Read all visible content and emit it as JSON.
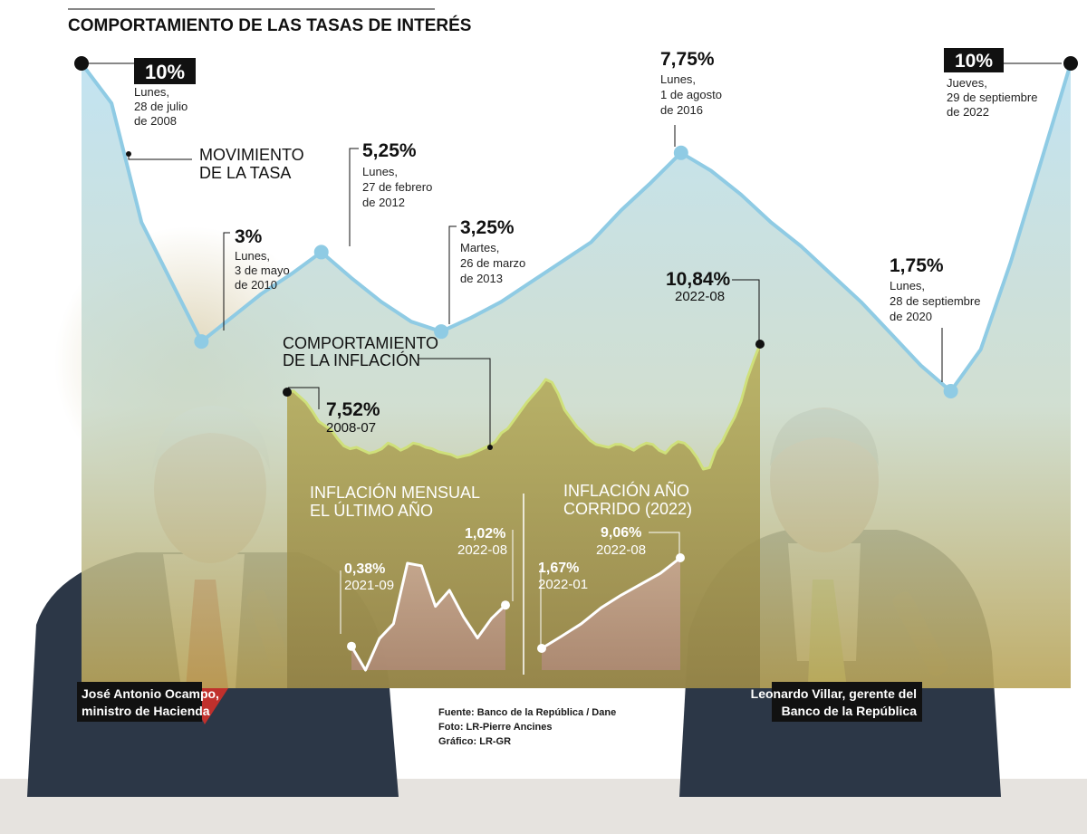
{
  "title": "COMPORTAMIENTO DE LAS TASAS DE INTERÉS",
  "colors": {
    "rate_line": "#8fcbe4",
    "rate_fill": "#bfe2f1",
    "inflation_line": "#cfe07a",
    "inflation_fill": "#b3a43d",
    "photo_suits": "#2c3747",
    "tie_left": "#c0302c",
    "tie_right": "#a9c86a"
  },
  "chart_data": [
    {
      "type": "line",
      "name": "rates",
      "label": "MOVIMIENTO DE LA TASA",
      "values": [
        10,
        9.0,
        6.0,
        4.5,
        3.0,
        3.6,
        4.2,
        4.7,
        5.25,
        4.6,
        4.0,
        3.5,
        3.25,
        3.6,
        4.0,
        4.5,
        5.0,
        5.5,
        6.3,
        7.0,
        7.75,
        7.3,
        6.7,
        6.0,
        5.4,
        4.7,
        4.0,
        3.2,
        2.4,
        1.75,
        2.8,
        5.0,
        7.5,
        10
      ],
      "points": [
        {
          "index": 0,
          "value": "10%",
          "line1": "Lunes,",
          "line2": "28 de julio",
          "line3": "de 2008"
        },
        {
          "index": 4,
          "value": "3%",
          "line1": "Lunes,",
          "line2": "3 de mayo",
          "line3": "de 2010"
        },
        {
          "index": 8,
          "value": "5,25%",
          "line1": "Lunes,",
          "line2": "27 de febrero",
          "line3": "de 2012"
        },
        {
          "index": 12,
          "value": "3,25%",
          "line1": "Martes,",
          "line2": "26 de marzo",
          "line3": "de 2013"
        },
        {
          "index": 20,
          "value": "7,75%",
          "line1": "Lunes,",
          "line2": "1 de agosto",
          "line3": "de 2016"
        },
        {
          "index": 29,
          "value": "1,75%",
          "line1": "Lunes,",
          "line2": "28 de septiembre",
          "line3": "de 2020"
        },
        {
          "index": 33,
          "value": "10%",
          "line1": "Jueves,",
          "line2": "29 de septiembre",
          "line3": "de 2022"
        }
      ]
    },
    {
      "type": "area",
      "name": "inflation",
      "label": "COMPORTAMIENTO DE LA INFLACIÓN",
      "x_start": "2008-07",
      "x_end": "2022-08",
      "values": [
        7.52,
        7.6,
        7.2,
        6.8,
        6.2,
        5.5,
        5.2,
        4.9,
        4.3,
        3.8,
        3.6,
        3.7,
        3.5,
        3.3,
        3.4,
        3.6,
        4.0,
        3.8,
        3.5,
        3.7,
        4.0,
        3.9,
        3.7,
        3.6,
        3.4,
        3.3,
        3.2,
        3.0,
        3.1,
        3.2,
        3.4,
        3.6,
        3.8,
        4.1,
        4.7,
        5.0,
        5.6,
        6.2,
        6.8,
        7.3,
        7.8,
        8.4,
        8.2,
        7.4,
        6.3,
        5.7,
        5.1,
        4.7,
        4.2,
        3.9,
        3.8,
        3.7,
        3.9,
        3.9,
        3.7,
        3.5,
        3.8,
        4.0,
        3.9,
        3.5,
        3.3,
        3.8,
        4.1,
        4.0,
        3.6,
        3.0,
        2.2,
        2.3,
        3.5,
        4.1,
        5.0,
        5.8,
        6.9,
        8.5,
        9.7,
        10.84
      ],
      "start_label": {
        "value": "7,52%",
        "date": "2008-07"
      },
      "end_label": {
        "value": "10,84%",
        "date": "2022-08"
      }
    },
    {
      "type": "area",
      "name": "monthly_inflation",
      "label": "INFLACIÓN MENSUAL EL ÚLTIMO AÑO",
      "x_start": "2021-09",
      "x_end": "2022-08",
      "values": [
        0.38,
        0.01,
        0.5,
        0.73,
        1.67,
        1.63,
        1.0,
        1.25,
        0.84,
        0.51,
        0.81,
        1.02
      ],
      "start_label": {
        "value": "0,38%",
        "date": "2021-09"
      },
      "end_label": {
        "value": "1,02%",
        "date": "2022-08"
      }
    },
    {
      "type": "area",
      "name": "ytd_inflation",
      "label": "INFLACIÓN AÑO CORRIDO (2022)",
      "x_start": "2022-01",
      "x_end": "2022-08",
      "values": [
        1.67,
        2.66,
        3.68,
        4.98,
        6.0,
        6.9,
        7.8,
        9.06
      ],
      "start_label": {
        "value": "1,67%",
        "date": "2022-01"
      },
      "end_label": {
        "value": "9,06%",
        "date": "2022-08"
      }
    }
  ],
  "captions": {
    "left_line1": "José Antonio Ocampo,",
    "left_line2": "ministro de Hacienda",
    "right_line1": "Leonardo Villar, gerente del",
    "right_line2": "Banco de la República"
  },
  "credits": {
    "source": "Fuente: Banco de la República / Dane",
    "photo": "Foto: LR-Pierre Ancines",
    "graphic": "Gráfico: LR-GR"
  },
  "sub_labels": {
    "monthly_line1": "INFLACIÓN MENSUAL",
    "monthly_line2": "EL ÚLTIMO AÑO",
    "ytd_line1": "INFLACIÓN AÑO",
    "ytd_line2": "CORRIDO (2022)",
    "rate_line1": "MOVIMIENTO",
    "rate_line2": "DE LA TASA",
    "inflation_line1": "COMPORTAMIENTO",
    "inflation_line2": "DE LA INFLACIÓN"
  }
}
